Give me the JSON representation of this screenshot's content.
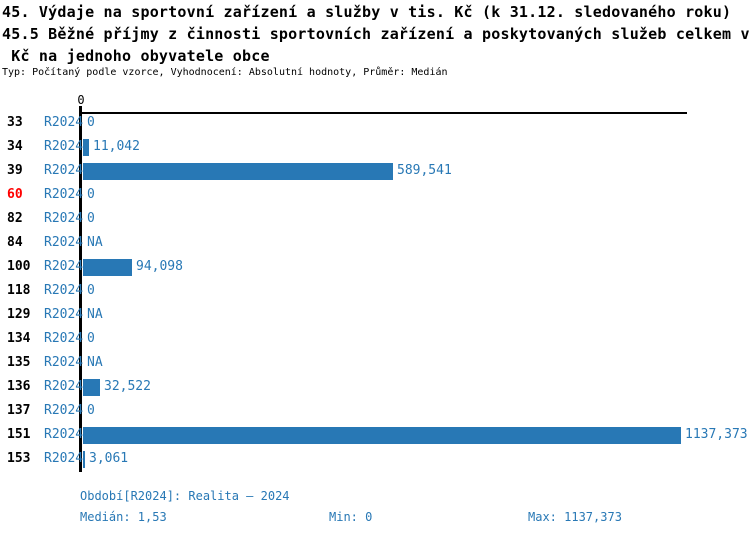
{
  "colors": {
    "accent": "#2878b5",
    "highlight": "#ff0000",
    "axis": "#000000"
  },
  "header": {
    "title_line1": "45. Výdaje na sportovní zařízení a služby v tis. Kč (k 31.12. sledovaného roku)",
    "title_line2": "45.5 Běžné příjmy z činnosti sportovních zařízení a poskytovaných služeb celkem v",
    "title_line3": " Kč na jednoho obyvatele obce",
    "meta": "Typ: Počítaný podle vzorce, Vyhodnocení: Absolutní hodnoty, Průměr: Medián"
  },
  "chart_data": {
    "type": "bar",
    "orientation": "horizontal",
    "title": "45. Výdaje na sportovní zařízení a služby v tis. Kč (k 31.12. sledovaného roku) — 45.5 Běžné příjmy z činnosti sportovních zařízení a poskytovaných služeb celkem v Kč na jednoho obyvatele obce",
    "axis_tick_label": "0",
    "xlim": [
      0,
      1150
    ],
    "grid": false,
    "categories": [
      "33",
      "34",
      "39",
      "60",
      "82",
      "84",
      "100",
      "118",
      "129",
      "134",
      "135",
      "136",
      "137",
      "151",
      "153"
    ],
    "series": [
      {
        "name": "R2024",
        "values": [
          0,
          11.042,
          589.541,
          0,
          0,
          null,
          94.098,
          0,
          null,
          0,
          null,
          32.522,
          0,
          1137.373,
          3.061
        ]
      }
    ],
    "value_labels": [
      "0",
      "11,042",
      "589,541",
      "0",
      "0",
      "NA",
      "94,098",
      "0",
      "NA",
      "0",
      "NA",
      "32,522",
      "0",
      "1137,373",
      "3,061"
    ],
    "highlighted_categories": [
      "60"
    ],
    "max_value": 1137.373,
    "bar_color": "#2878b5",
    "highlight_color": "#ff0000"
  },
  "footer": {
    "period": "Období[R2024]: Realita – 2024",
    "median": "Medián: 1,53",
    "min": "Min: 0",
    "max": "Max: 1137,373"
  }
}
